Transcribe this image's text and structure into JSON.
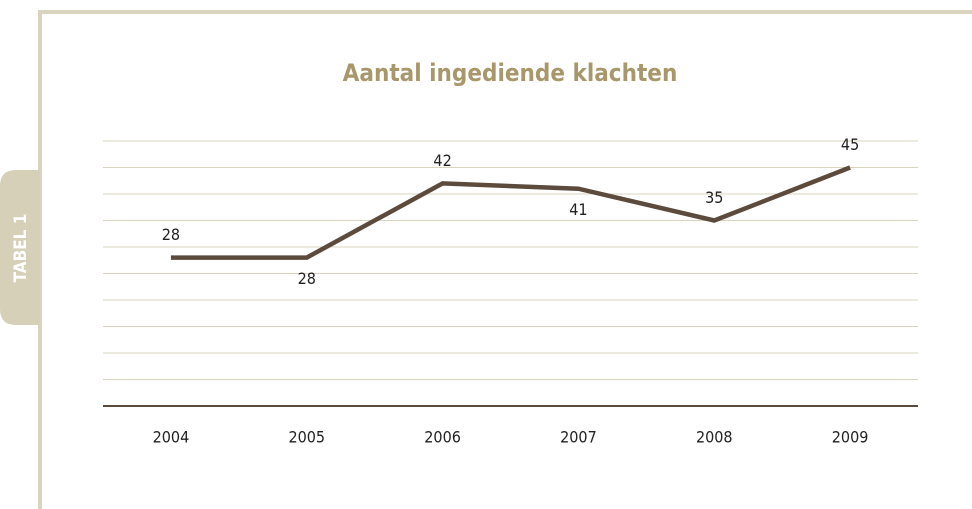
{
  "tab_label": "TABEL 1",
  "chart_data": {
    "type": "line",
    "title": "Aantal ingediende klachten",
    "categories": [
      "2004",
      "2005",
      "2006",
      "2007",
      "2008",
      "2009"
    ],
    "values": [
      28,
      28,
      42,
      41,
      35,
      45
    ],
    "color": "#5c4b3d",
    "ylim": [
      0,
      50
    ],
    "yticks": [
      0,
      5,
      10,
      15,
      20,
      25,
      30,
      35,
      40,
      45,
      50
    ],
    "ytick_labels": false,
    "grid": true,
    "data_labels": true
  }
}
